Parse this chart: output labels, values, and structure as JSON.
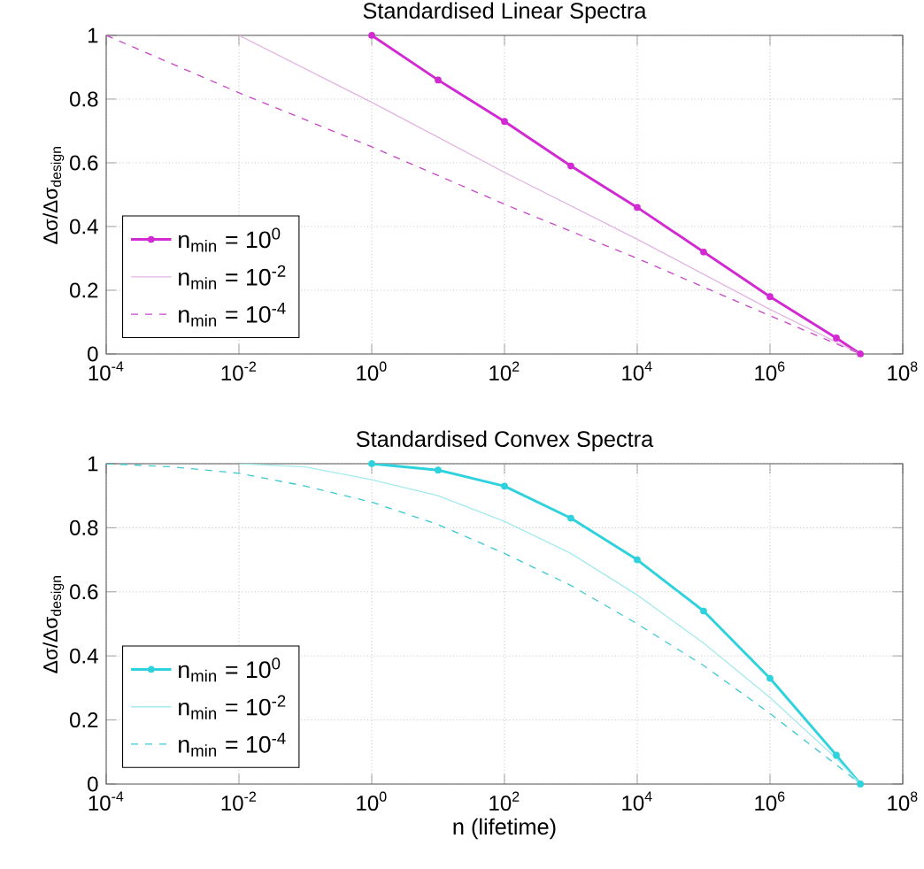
{
  "chart_data": [
    {
      "type": "line",
      "title": "Standardised Linear Spectra",
      "ylabel": "Δσ/Δσ$_{design}$",
      "log": "x",
      "grid": true,
      "legend": "bottom left",
      "xlim": [
        0.0001,
        100000000.0
      ],
      "ylim": [
        0,
        1
      ],
      "xticks": [
        {
          "value": 0.0001,
          "label": "10$^{-4}$"
        },
        {
          "value": 0.01,
          "label": "10$^{-2}$"
        },
        {
          "value": 1,
          "label": "10$^{0}$"
        },
        {
          "value": 100.0,
          "label": "10$^{2}$"
        },
        {
          "value": 10000.0,
          "label": "10$^{4}$"
        },
        {
          "value": 1000000.0,
          "label": "10$^{6}$"
        },
        {
          "value": 100000000.0,
          "label": "10$^{8}$"
        }
      ],
      "yticks": [
        0,
        0.2,
        0.4,
        0.6,
        0.8,
        1
      ],
      "series": [
        {
          "name": "n$_{min}$ = 10$^{0}$",
          "color": "#d22ad2",
          "marker": "circle",
          "line_style": "solid",
          "x": [
            1,
            10.0,
            100.0,
            1000.0,
            10000.0,
            100000.0,
            1000000.0,
            10000000.0,
            23000000.0
          ],
          "values": [
            1,
            0.86,
            0.73,
            0.59,
            0.46,
            0.32,
            0.18,
            0.05,
            0
          ]
        },
        {
          "name": "n$_{min}$ = 10$^{-2}$",
          "color": "#e2b4e2",
          "line_style": "solid",
          "x": [
            0.01,
            1,
            100.0,
            10000.0,
            1000000.0,
            23000000.0
          ],
          "values": [
            1,
            0.79,
            0.57,
            0.36,
            0.14,
            0
          ]
        },
        {
          "name": "n$_{min}$ = 10$^{-4}$",
          "color": "#c84ac8",
          "line_style": "dashed",
          "x": [
            0.0001,
            0.01,
            1,
            100.0,
            10000.0,
            1000000.0,
            23000000.0
          ],
          "values": [
            1,
            0.82,
            0.65,
            0.47,
            0.3,
            0.12,
            0
          ]
        }
      ]
    },
    {
      "type": "line",
      "title": "Standardised Convex Spectra",
      "xlabel": "n (lifetime)",
      "ylabel": "Δσ/Δσ$_{design}$",
      "log": "x",
      "grid": true,
      "legend": "bottom left",
      "xlim": [
        0.0001,
        100000000.0
      ],
      "ylim": [
        0,
        1
      ],
      "xticks": [
        {
          "value": 0.0001,
          "label": "10$^{-4}$"
        },
        {
          "value": 0.01,
          "label": "10$^{-2}$"
        },
        {
          "value": 1,
          "label": "10$^{0}$"
        },
        {
          "value": 100.0,
          "label": "10$^{2}$"
        },
        {
          "value": 10000.0,
          "label": "10$^{4}$"
        },
        {
          "value": 1000000.0,
          "label": "10$^{6}$"
        },
        {
          "value": 100000000.0,
          "label": "10$^{8}$"
        }
      ],
      "yticks": [
        0,
        0.2,
        0.4,
        0.6,
        0.8,
        1
      ],
      "series": [
        {
          "name": "n$_{min}$ = 10$^{0}$",
          "color": "#2ed2dc",
          "marker": "circle",
          "line_style": "solid",
          "x": [
            1,
            10.0,
            100.0,
            1000.0,
            10000.0,
            100000.0,
            1000000.0,
            10000000.0,
            23000000.0
          ],
          "values": [
            1,
            0.98,
            0.93,
            0.83,
            0.7,
            0.54,
            0.33,
            0.09,
            0
          ]
        },
        {
          "name": "n$_{min}$ = 10$^{-2}$",
          "color": "#a6eaee",
          "line_style": "solid",
          "x": [
            0.01,
            0.1,
            1,
            10.0,
            100.0,
            1000.0,
            10000.0,
            100000.0,
            1000000.0,
            10000000.0,
            23000000.0
          ],
          "values": [
            1,
            0.99,
            0.95,
            0.9,
            0.82,
            0.72,
            0.59,
            0.44,
            0.27,
            0.08,
            0
          ]
        },
        {
          "name": "n$_{min}$ = 10$^{-4}$",
          "color": "#3ec8d2",
          "line_style": "dashed",
          "x": [
            0.0001,
            0.001,
            0.01,
            0.1,
            1,
            10.0,
            100.0,
            1000.0,
            10000.0,
            100000.0,
            1000000.0,
            10000000.0,
            23000000.0
          ],
          "values": [
            1,
            0.99,
            0.97,
            0.93,
            0.88,
            0.81,
            0.72,
            0.62,
            0.5,
            0.37,
            0.22,
            0.06,
            0
          ]
        }
      ]
    }
  ]
}
